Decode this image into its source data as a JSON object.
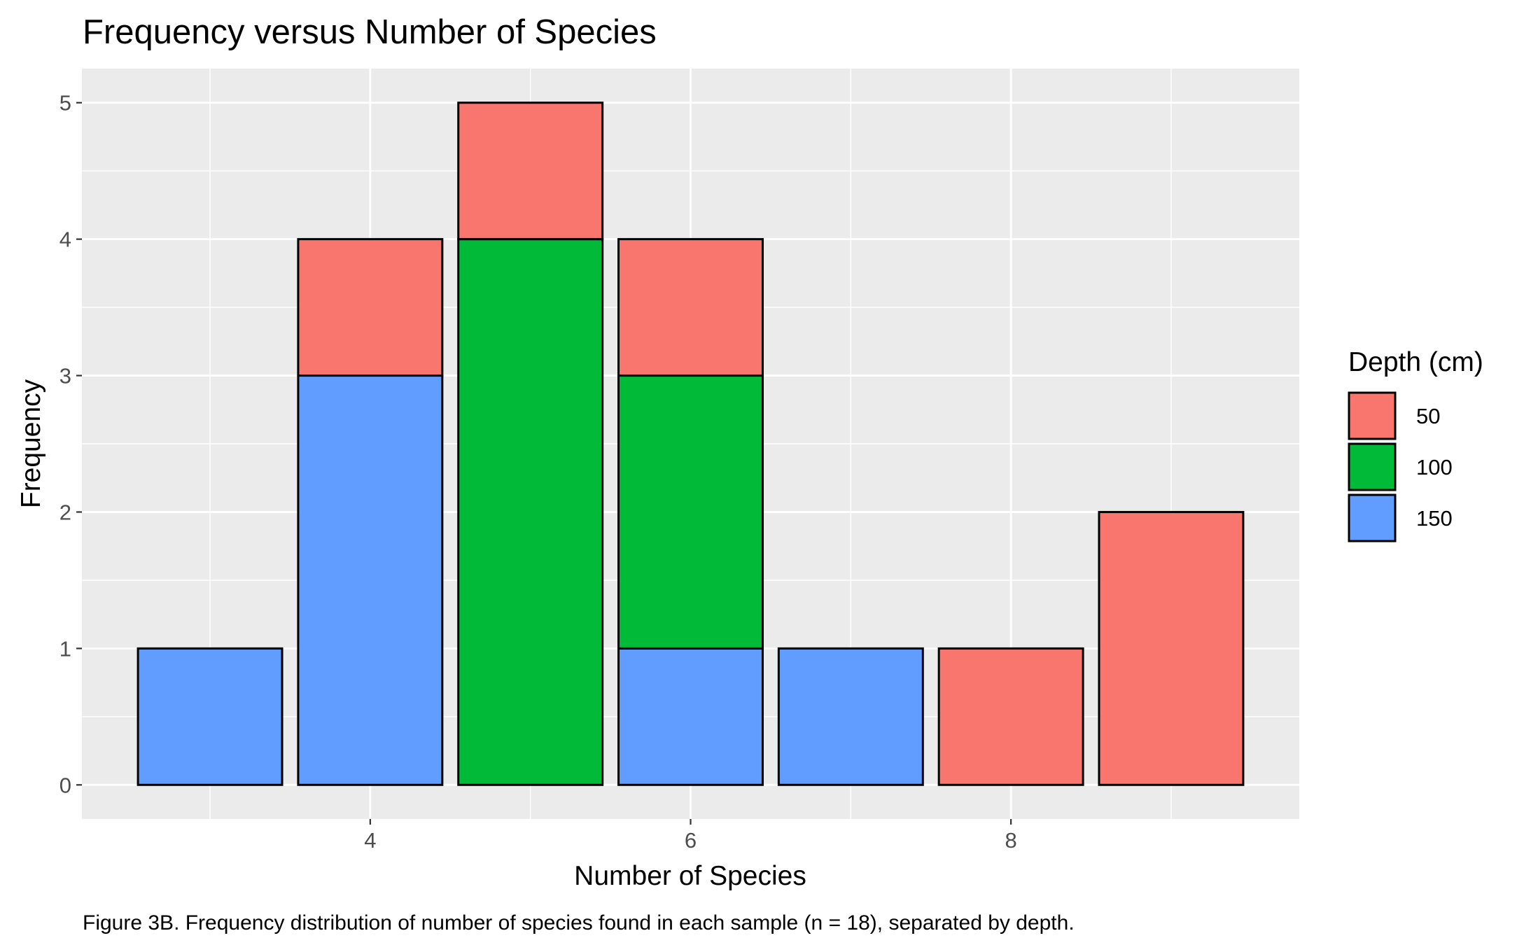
{
  "chart_data": {
    "type": "bar",
    "stacked": true,
    "title": "Frequency versus Number of Species",
    "xlabel": "Number of Species",
    "ylabel": "Frequency",
    "caption": "Figure 3B. Frequency distribution of number of species found in each sample (n = 18), separated by depth.",
    "x": [
      3,
      4,
      5,
      6,
      7,
      8,
      9
    ],
    "xlim": [
      2.2,
      9.8
    ],
    "ylim": [
      -0.25,
      5.25
    ],
    "x_ticks": [
      4,
      6,
      8
    ],
    "y_ticks": [
      0,
      1,
      2,
      3,
      4,
      5
    ],
    "legend": {
      "title": "Depth (cm)",
      "position": "right"
    },
    "series": [
      {
        "name": "150",
        "color": "#619CFF",
        "values": [
          1,
          3,
          0,
          1,
          1,
          0,
          0
        ]
      },
      {
        "name": "100",
        "color": "#00BA38",
        "values": [
          0,
          0,
          4,
          2,
          0,
          0,
          0
        ]
      },
      {
        "name": "50",
        "color": "#F8766D",
        "values": [
          0,
          1,
          1,
          1,
          0,
          1,
          2
        ]
      }
    ],
    "legend_order": [
      "50",
      "100",
      "150"
    ],
    "grid": true,
    "panel_background": "#EBEBEB",
    "bar_outline": "#000000"
  }
}
